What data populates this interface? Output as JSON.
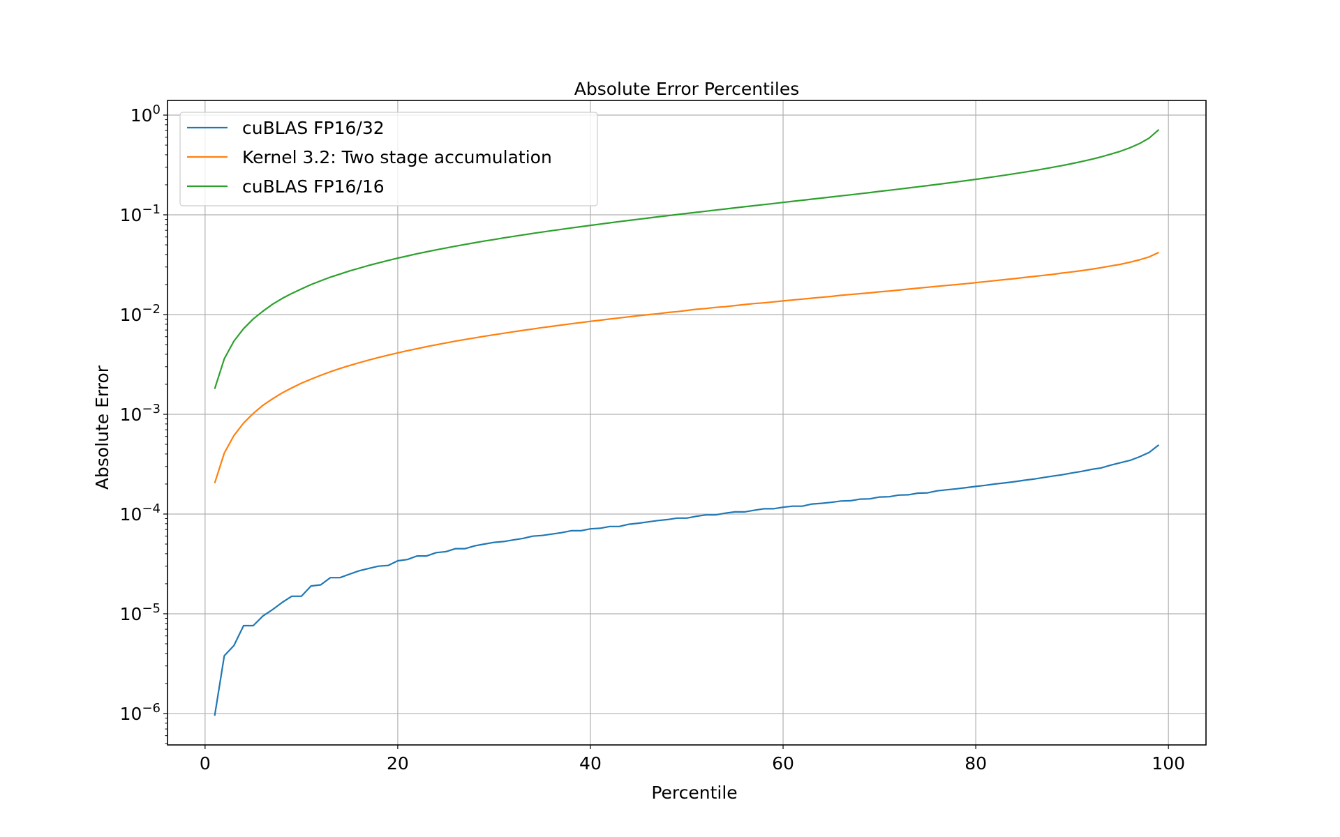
{
  "chart_data": {
    "type": "line",
    "title": "Absolute Error Percentiles",
    "xlabel": "Percentile",
    "ylabel": "Absolute Error",
    "xscale": "linear",
    "yscale": "log",
    "xlim": [
      -3.9,
      103.9
    ],
    "ylim_log10": [
      -6.315,
      0.147
    ],
    "grid": true,
    "legend_placement": "top-left",
    "x_ticks": [
      0,
      20,
      40,
      60,
      80,
      100
    ],
    "x_tick_labels": [
      "0",
      "20",
      "40",
      "60",
      "80",
      "100"
    ],
    "y_ticks_log10": [
      0,
      -1,
      -2,
      -3,
      -4,
      -5,
      -6
    ],
    "y_tick_base": "10",
    "y_tick_exponents": [
      "0",
      "−1",
      "−2",
      "−3",
      "−4",
      "−5",
      "−6"
    ],
    "x": [
      1,
      2,
      3,
      4,
      5,
      6,
      7,
      8,
      9,
      10,
      11,
      12,
      13,
      14,
      15,
      16,
      17,
      18,
      19,
      20,
      21,
      22,
      23,
      24,
      25,
      26,
      27,
      28,
      29,
      30,
      31,
      32,
      33,
      34,
      35,
      36,
      37,
      38,
      39,
      40,
      41,
      42,
      43,
      44,
      45,
      46,
      47,
      48,
      49,
      50,
      51,
      52,
      53,
      54,
      55,
      56,
      57,
      58,
      59,
      60,
      61,
      62,
      63,
      64,
      65,
      66,
      67,
      68,
      69,
      70,
      71,
      72,
      73,
      74,
      75,
      76,
      77,
      78,
      79,
      80,
      81,
      82,
      83,
      84,
      85,
      86,
      87,
      88,
      89,
      90,
      91,
      92,
      93,
      94,
      95,
      96,
      97,
      98,
      99
    ],
    "series": [
      {
        "name": "cuBLAS FP16/32",
        "color": "#1f77b4",
        "values": [
          9.5e-07,
          3.8e-06,
          4.8e-06,
          7.6e-06,
          7.6e-06,
          9.5e-06,
          1.1e-05,
          1.3e-05,
          1.5e-05,
          1.5e-05,
          1.9e-05,
          1.95e-05,
          2.3e-05,
          2.3e-05,
          2.5e-05,
          2.7e-05,
          2.85e-05,
          3e-05,
          3.05e-05,
          3.4e-05,
          3.5e-05,
          3.8e-05,
          3.8e-05,
          4.1e-05,
          4.2e-05,
          4.5e-05,
          4.5e-05,
          4.8e-05,
          5e-05,
          5.2e-05,
          5.3e-05,
          5.5e-05,
          5.7e-05,
          6e-05,
          6.1e-05,
          6.3e-05,
          6.5e-05,
          6.8e-05,
          6.8e-05,
          7.1e-05,
          7.2e-05,
          7.5e-05,
          7.5e-05,
          7.9e-05,
          8.1e-05,
          8.35e-05,
          8.6e-05,
          8.8e-05,
          9.1e-05,
          9.1e-05,
          9.5e-05,
          9.8e-05,
          9.8e-05,
          0.000102,
          0.000105,
          0.000105,
          0.000109,
          0.000113,
          0.000113,
          0.000117,
          0.00012,
          0.00012,
          0.000126,
          0.000128,
          0.000131,
          0.000135,
          0.000136,
          0.000141,
          0.000142,
          0.000148,
          0.000149,
          0.000155,
          0.000156,
          0.000162,
          0.000163,
          0.000171,
          0.000175,
          0.000179,
          0.000184,
          0.000189,
          0.000194,
          0.0002,
          0.000205,
          0.000211,
          0.000218,
          0.000224,
          0.000232,
          0.00024,
          0.000248,
          0.000258,
          0.000268,
          0.00028,
          0.00029,
          0.000309,
          0.000327,
          0.000345,
          0.000375,
          0.000415,
          0.000493
        ]
      },
      {
        "name": "Kernel 3.2: Two stage accumulation",
        "color": "#ff7f0e",
        "values": [
          0.000204,
          0.000409,
          0.000613,
          0.000817,
          0.00102,
          0.00123,
          0.00143,
          0.00164,
          0.00184,
          0.00205,
          0.00225,
          0.00246,
          0.00267,
          0.00288,
          0.00308,
          0.00329,
          0.0035,
          0.00371,
          0.00392,
          0.00413,
          0.00434,
          0.00455,
          0.00477,
          0.00498,
          0.00519,
          0.00541,
          0.00563,
          0.00584,
          0.00606,
          0.00628,
          0.0065,
          0.00672,
          0.00695,
          0.00717,
          0.0074,
          0.00762,
          0.00785,
          0.00808,
          0.00831,
          0.00855,
          0.00878,
          0.00902,
          0.00926,
          0.0095,
          0.00974,
          0.00999,
          0.0102,
          0.0105,
          0.0107,
          0.011,
          0.0113,
          0.0115,
          0.0118,
          0.012,
          0.0123,
          0.0126,
          0.0129,
          0.0131,
          0.0134,
          0.0137,
          0.014,
          0.0143,
          0.0146,
          0.0149,
          0.0152,
          0.0156,
          0.0159,
          0.0162,
          0.0165,
          0.0169,
          0.0172,
          0.0176,
          0.018,
          0.0184,
          0.0188,
          0.0192,
          0.0196,
          0.02,
          0.0204,
          0.0209,
          0.0214,
          0.0219,
          0.0224,
          0.0229,
          0.0235,
          0.0241,
          0.0247,
          0.0253,
          0.0261,
          0.0268,
          0.0276,
          0.0285,
          0.0295,
          0.0307,
          0.0319,
          0.0335,
          0.0354,
          0.0379,
          0.042
        ]
      },
      {
        "name": "cuBLAS FP16/16",
        "color": "#2ca02c",
        "values": [
          0.0018,
          0.00361,
          0.00542,
          0.00722,
          0.00904,
          0.0108,
          0.0127,
          0.0145,
          0.0163,
          0.0181,
          0.02,
          0.0218,
          0.0237,
          0.0255,
          0.0274,
          0.0292,
          0.0311,
          0.033,
          0.0349,
          0.0368,
          0.0387,
          0.0407,
          0.0426,
          0.0446,
          0.0465,
          0.0485,
          0.0505,
          0.0525,
          0.0546,
          0.0566,
          0.0587,
          0.0608,
          0.0629,
          0.0651,
          0.0672,
          0.0694,
          0.0716,
          0.0739,
          0.0761,
          0.0784,
          0.0807,
          0.0831,
          0.0855,
          0.0879,
          0.0904,
          0.0929,
          0.0954,
          0.098,
          0.1006,
          0.1033,
          0.106,
          0.1088,
          0.1116,
          0.1145,
          0.1175,
          0.1205,
          0.1236,
          0.1267,
          0.1299,
          0.1332,
          0.1366,
          0.1401,
          0.1436,
          0.1473,
          0.151,
          0.1549,
          0.1589,
          0.163,
          0.1673,
          0.1717,
          0.1763,
          0.181,
          0.1859,
          0.191,
          0.1963,
          0.2019,
          0.2077,
          0.2138,
          0.2202,
          0.227,
          0.2341,
          0.2417,
          0.2497,
          0.2583,
          0.2674,
          0.2773,
          0.288,
          0.2997,
          0.3124,
          0.3266,
          0.3424,
          0.3603,
          0.3808,
          0.405,
          0.434,
          0.4704,
          0.5185,
          0.5888,
          0.7155
        ]
      }
    ]
  }
}
